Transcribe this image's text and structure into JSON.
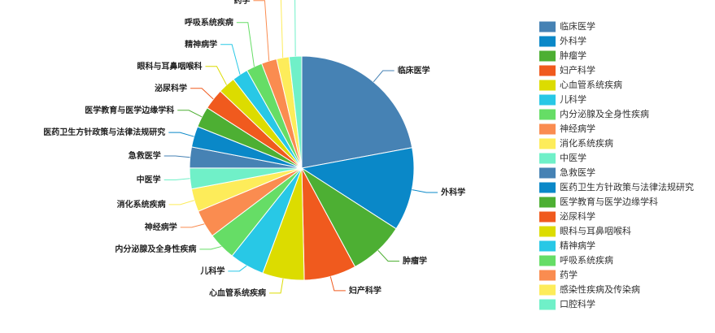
{
  "chart_data": {
    "type": "pie",
    "categories": [
      "临床医学",
      "外科学",
      "肿瘤学",
      "妇产科学",
      "心血管系统疾病",
      "儿科学",
      "内分泌腺及全身性疾病",
      "神经病学",
      "消化系统疾病",
      "中医学",
      "急救医学",
      "医药卫生方针政策与法律法规研究",
      "医学教育与医学边缘学科",
      "泌尿科学",
      "眼科与耳鼻咽喉科",
      "精神病学",
      "呼吸系统疾病",
      "药学",
      "感染性疾病及传染病",
      "口腔科学"
    ],
    "values": [
      22,
      12,
      8,
      7.5,
      6,
      5,
      4,
      4,
      3.3,
      3,
      3,
      3,
      3,
      3,
      2.5,
      2.3,
      2.3,
      2.2,
      1.8,
      1.8
    ],
    "colors": [
      "#4682b4",
      "#0a88c8",
      "#4daf33",
      "#f05a1e",
      "#dcdc00",
      "#28c8e6",
      "#66dd66",
      "#fa8c50",
      "#fdec5a",
      "#70f0c8",
      "#4682b4",
      "#0a88c8",
      "#4daf33",
      "#f05a1e",
      "#dcdc00",
      "#28c8e6",
      "#66dd66",
      "#fa8c50",
      "#fdec5a",
      "#70f0c8"
    ],
    "legend_position": "right"
  }
}
